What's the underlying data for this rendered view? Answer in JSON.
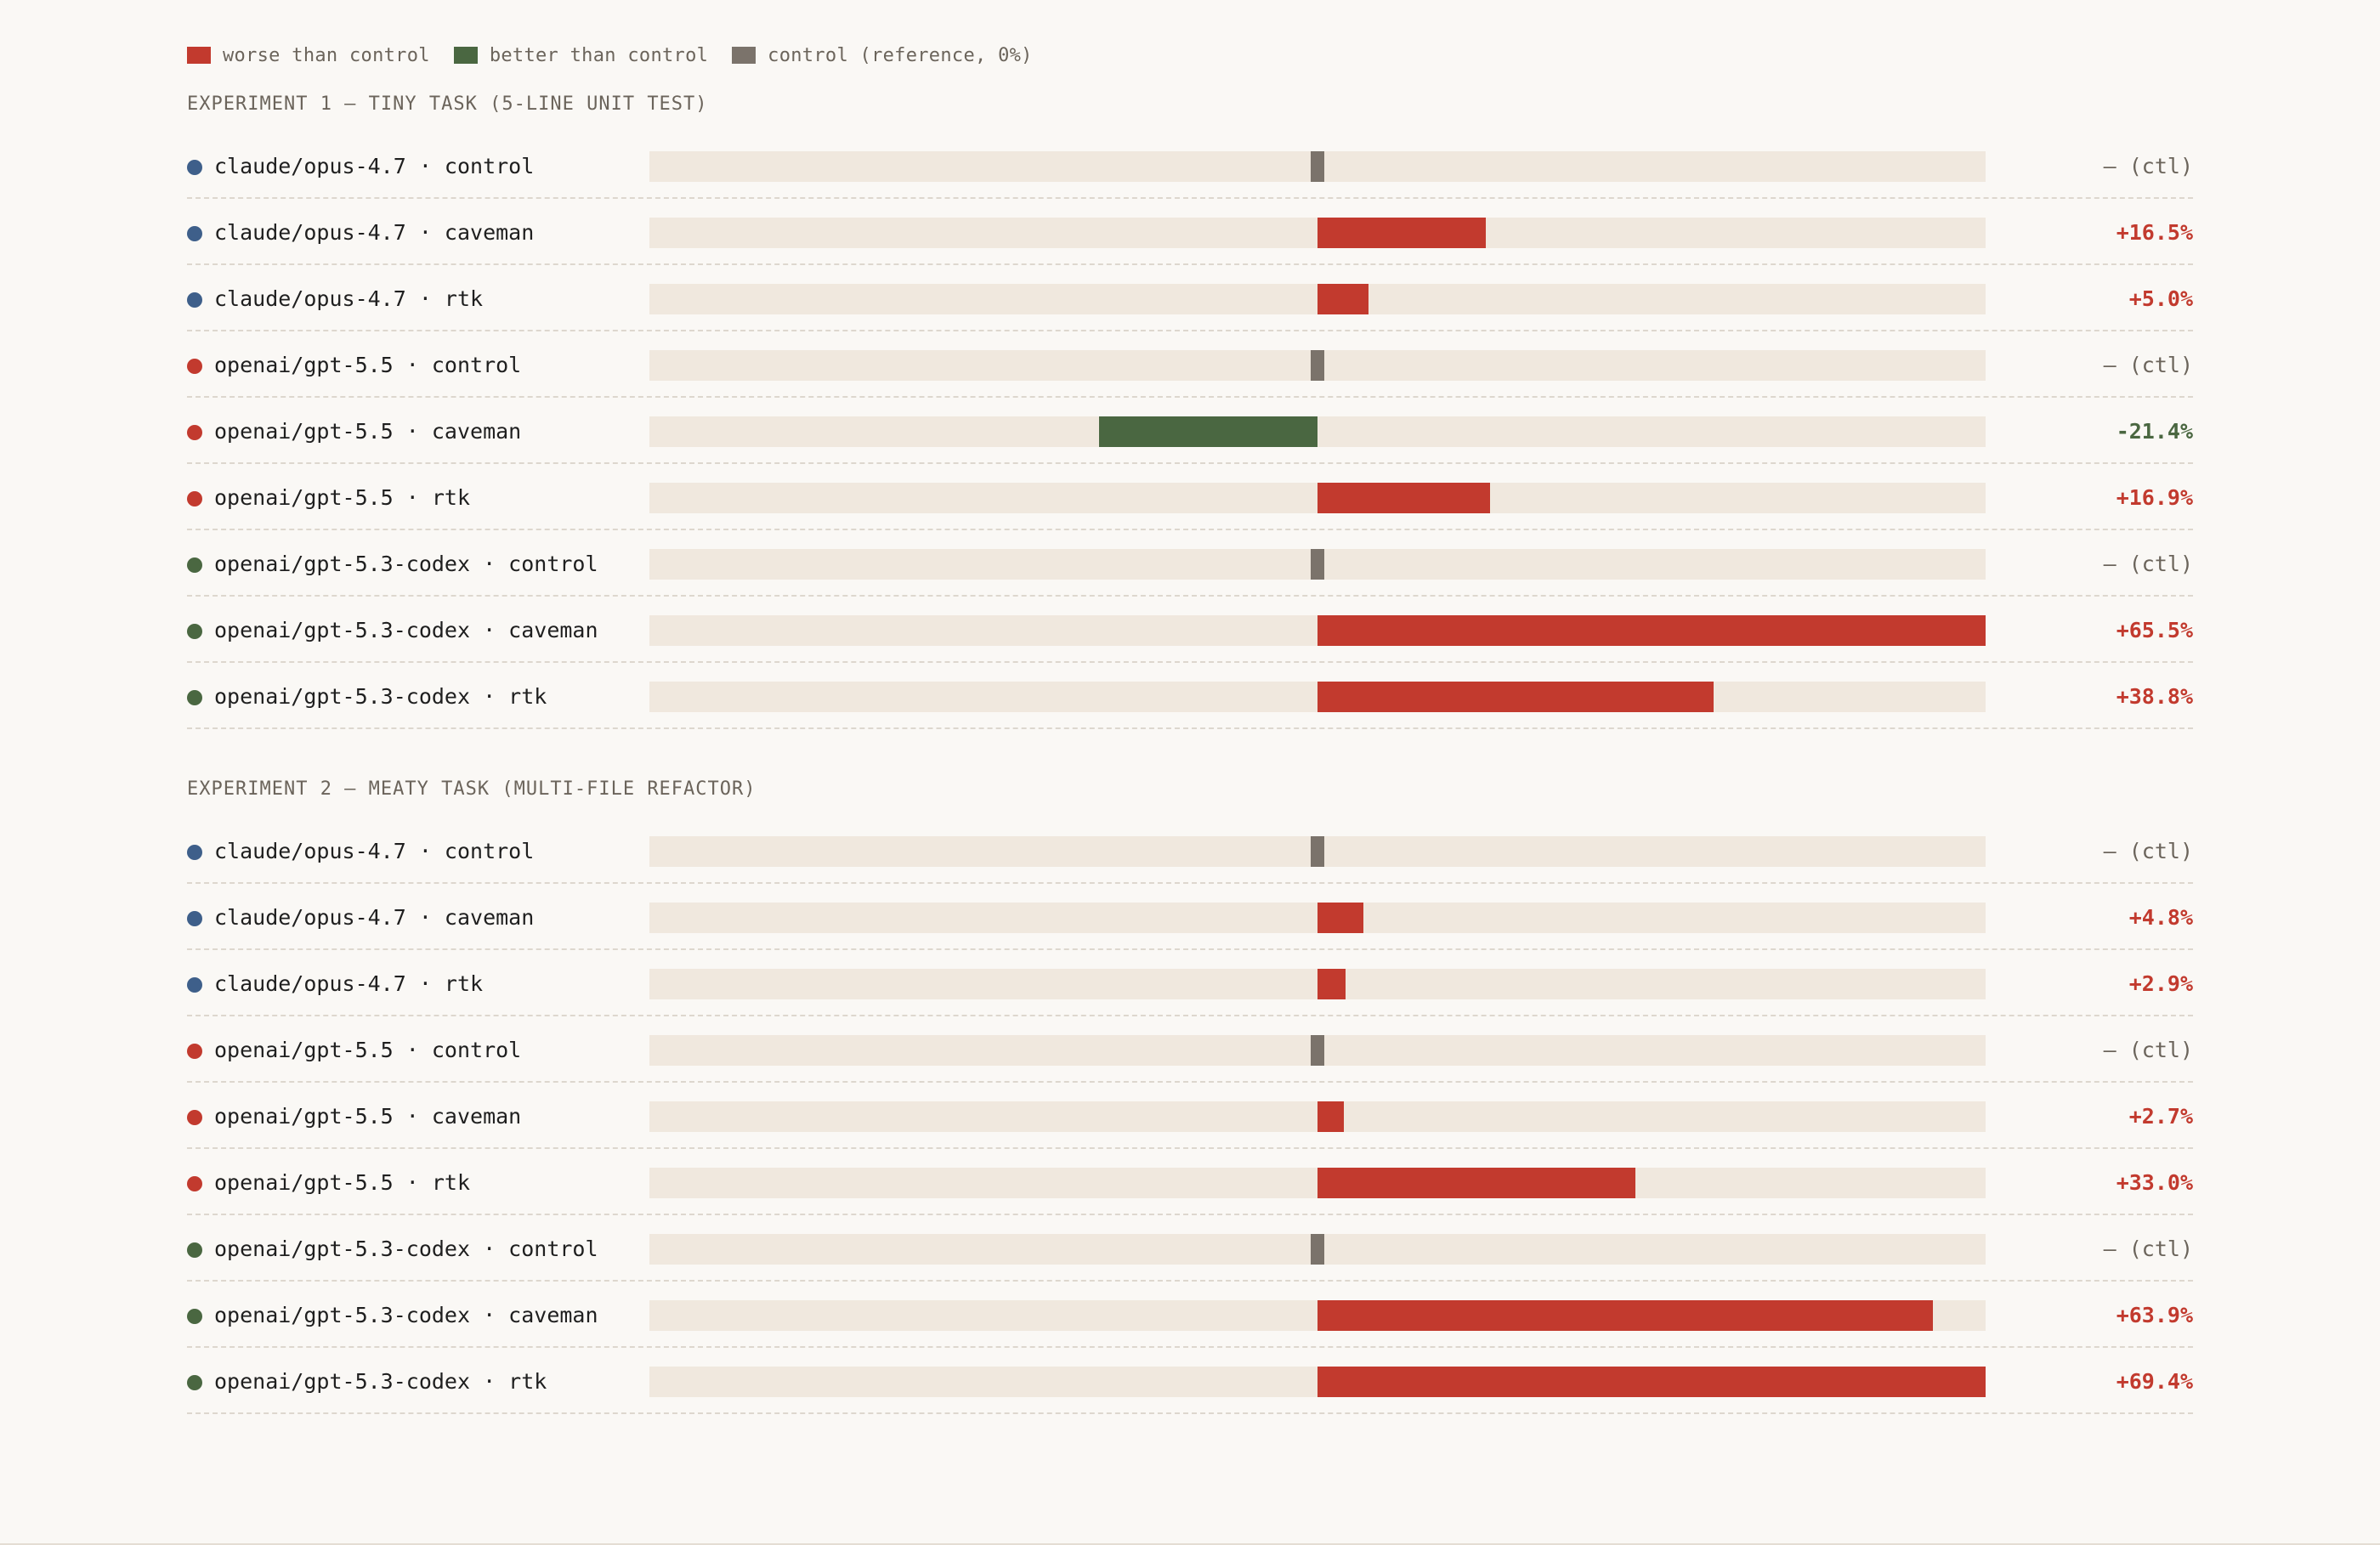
{
  "colors": {
    "worse": "#c23a2e",
    "better": "#4a6741",
    "control": "#7b736b",
    "claude": "#3e5f8a",
    "gpt55": "#c23a2e",
    "codex": "#4a6741"
  },
  "legend": [
    {
      "key": "worse",
      "label": "worse than control"
    },
    {
      "key": "better",
      "label": "better than control"
    },
    {
      "key": "control",
      "label": "control (reference, 0%)"
    }
  ],
  "chart_data": {
    "type": "bar",
    "orientation": "horizontal-diverging",
    "unit": "%",
    "xlim": [
      -65.5,
      69.4
    ],
    "panels": [
      {
        "title": "EXPERIMENT 1 — TINY TASK (5-LINE UNIT TEST)",
        "max_abs": 65.5,
        "rows": [
          {
            "label": "claude/opus-4.7 · control",
            "model": "claude",
            "value": 0,
            "is_control": true,
            "value_label": "— (ctl)"
          },
          {
            "label": "claude/opus-4.7 · caveman",
            "model": "claude",
            "value": 16.5,
            "is_control": false,
            "value_label": "+16.5%"
          },
          {
            "label": "claude/opus-4.7 · rtk",
            "model": "claude",
            "value": 5.0,
            "is_control": false,
            "value_label": "+5.0%"
          },
          {
            "label": "openai/gpt-5.5 · control",
            "model": "gpt55",
            "value": 0,
            "is_control": true,
            "value_label": "— (ctl)"
          },
          {
            "label": "openai/gpt-5.5 · caveman",
            "model": "gpt55",
            "value": -21.4,
            "is_control": false,
            "value_label": "-21.4%"
          },
          {
            "label": "openai/gpt-5.5 · rtk",
            "model": "gpt55",
            "value": 16.9,
            "is_control": false,
            "value_label": "+16.9%"
          },
          {
            "label": "openai/gpt-5.3-codex · control",
            "model": "codex",
            "value": 0,
            "is_control": true,
            "value_label": "— (ctl)"
          },
          {
            "label": "openai/gpt-5.3-codex · caveman",
            "model": "codex",
            "value": 65.5,
            "is_control": false,
            "value_label": "+65.5%"
          },
          {
            "label": "openai/gpt-5.3-codex · rtk",
            "model": "codex",
            "value": 38.8,
            "is_control": false,
            "value_label": "+38.8%"
          }
        ]
      },
      {
        "title": "EXPERIMENT 2 — MEATY TASK (MULTI-FILE REFACTOR)",
        "max_abs": 69.4,
        "rows": [
          {
            "label": "claude/opus-4.7 · control",
            "model": "claude",
            "value": 0,
            "is_control": true,
            "value_label": "— (ctl)"
          },
          {
            "label": "claude/opus-4.7 · caveman",
            "model": "claude",
            "value": 4.8,
            "is_control": false,
            "value_label": "+4.8%"
          },
          {
            "label": "claude/opus-4.7 · rtk",
            "model": "claude",
            "value": 2.9,
            "is_control": false,
            "value_label": "+2.9%"
          },
          {
            "label": "openai/gpt-5.5 · control",
            "model": "gpt55",
            "value": 0,
            "is_control": true,
            "value_label": "— (ctl)"
          },
          {
            "label": "openai/gpt-5.5 · caveman",
            "model": "gpt55",
            "value": 2.7,
            "is_control": false,
            "value_label": "+2.7%"
          },
          {
            "label": "openai/gpt-5.5 · rtk",
            "model": "gpt55",
            "value": 33.0,
            "is_control": false,
            "value_label": "+33.0%"
          },
          {
            "label": "openai/gpt-5.3-codex · control",
            "model": "codex",
            "value": 0,
            "is_control": true,
            "value_label": "— (ctl)"
          },
          {
            "label": "openai/gpt-5.3-codex · caveman",
            "model": "codex",
            "value": 63.9,
            "is_control": false,
            "value_label": "+63.9%"
          },
          {
            "label": "openai/gpt-5.3-codex · rtk",
            "model": "codex",
            "value": 69.4,
            "is_control": false,
            "value_label": "+69.4%"
          }
        ]
      }
    ]
  }
}
